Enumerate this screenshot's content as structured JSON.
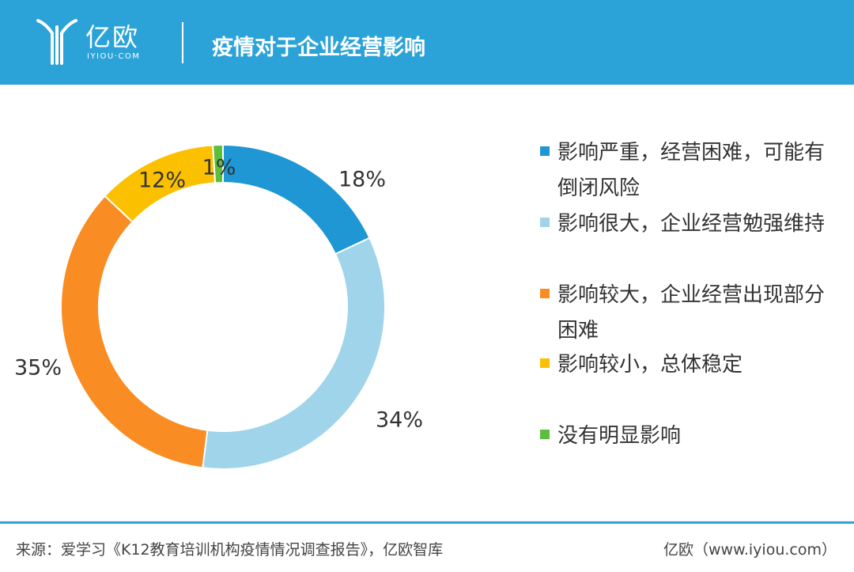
{
  "header": {
    "logo_name": "亿欧",
    "logo_sub": "IYIOU·COM",
    "title": "疫情对于企业经营影响"
  },
  "chart_data": {
    "type": "pie",
    "title": "疫情对于企业经营影响",
    "donut": true,
    "categories": [
      "影响严重，经营困难，可能有倒闭风险",
      "影响很大，企业经营勉强维持",
      "影响较大，企业经营出现部分困难",
      "影响较小，总体稳定",
      "没有明显影响"
    ],
    "values": [
      18,
      34,
      35,
      12,
      1
    ],
    "value_labels": [
      "18%",
      "34%",
      "35%",
      "12%",
      "1%"
    ],
    "colors": [
      "#1f97d4",
      "#9fd4ea",
      "#f98c22",
      "#fbc100",
      "#5bbf3c"
    ],
    "legend_placement": "right"
  },
  "footer": {
    "source": "来源：爱学习《K12教育培训机构疫情情况调查报告》，亿欧智库",
    "credit": "亿欧（www.iyiou.com）"
  },
  "theme": {
    "header_color": "#2ba3d8"
  }
}
